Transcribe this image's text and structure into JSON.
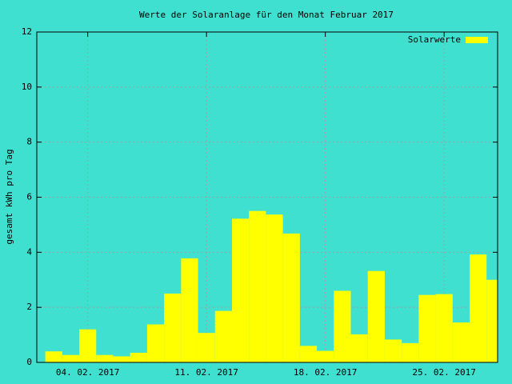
{
  "chart_data": {
    "type": "bar",
    "title": "Werte der Solaranlage für den Monat Februar 2017",
    "y_label": "gesamt kWh pro Tag",
    "x": [
      2,
      3,
      4,
      5,
      6,
      7,
      8,
      9,
      10,
      11,
      12,
      13,
      14,
      15,
      16,
      17,
      18,
      19,
      20,
      21,
      22,
      23,
      24,
      25,
      26,
      27,
      28
    ],
    "series": [
      {
        "name": "Solarwerte",
        "color": "#ffff00",
        "values": [
          0.4,
          0.27,
          1.2,
          0.27,
          0.22,
          0.35,
          1.38,
          2.5,
          3.78,
          1.07,
          1.87,
          5.22,
          5.5,
          5.37,
          4.68,
          0.6,
          0.42,
          2.6,
          1.02,
          3.32,
          0.83,
          0.7,
          2.45,
          2.48,
          1.45,
          3.92,
          3.0
        ]
      }
    ],
    "xlim": [
      1,
      28.15
    ],
    "xticks": [
      {
        "value": 4,
        "label": "04. 02. 2017"
      },
      {
        "value": 11,
        "label": "11. 02. 2017"
      },
      {
        "value": 18,
        "label": "18. 02. 2017"
      },
      {
        "value": 25,
        "label": "25. 02. 2017"
      }
    ],
    "ylim": [
      0,
      12
    ],
    "yticks": [
      0,
      2,
      4,
      6,
      8,
      10,
      12
    ],
    "grid": true,
    "legend_position": "top-right",
    "bar_width_days": 1,
    "background": "#40e0d0"
  }
}
